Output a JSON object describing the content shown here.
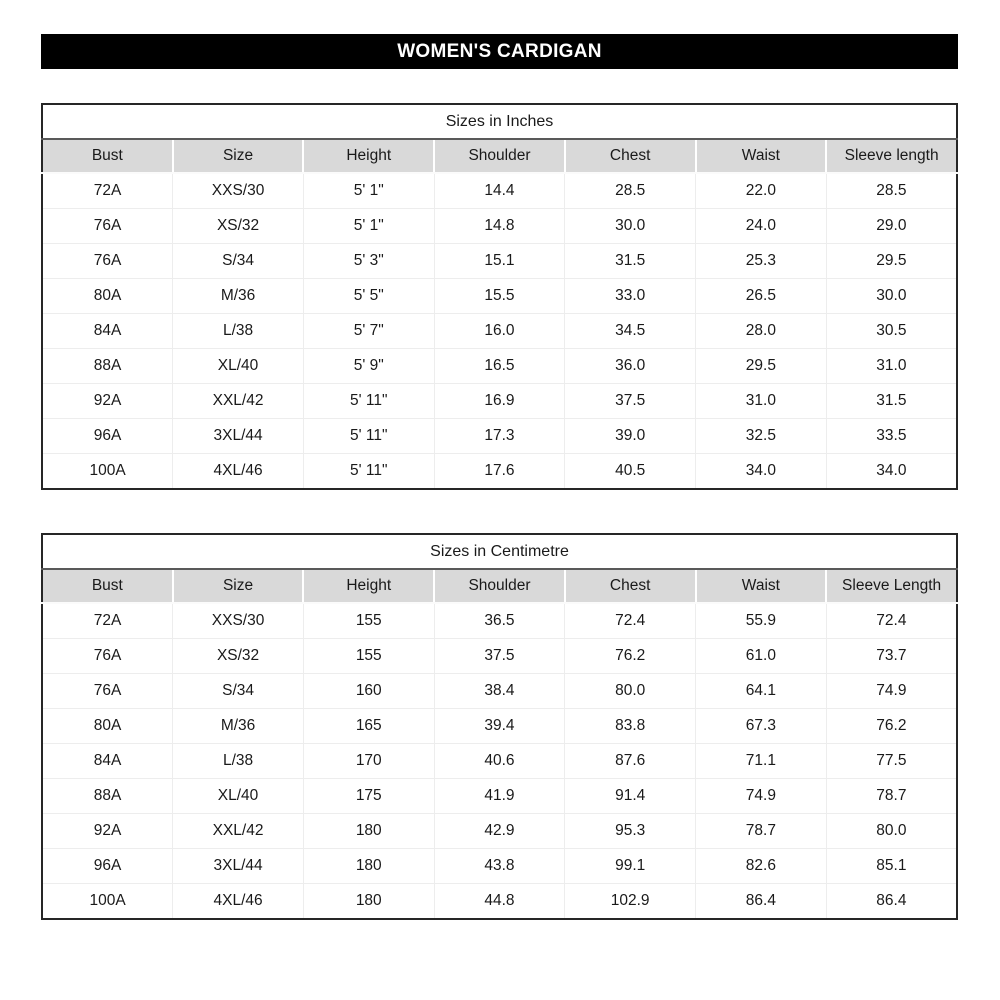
{
  "banner": {
    "title": "WOMEN'S CARDIGAN",
    "background_color": "#000000",
    "text_color": "#ffffff"
  },
  "colors": {
    "header_row_bg": "#d9d9d9",
    "outer_border": "#262626",
    "title_rule": "#595959",
    "grid_line": "#ededed"
  },
  "tables": [
    {
      "title": "Sizes in Inches",
      "headers": [
        "Bust",
        "Size",
        "Height",
        "Shoulder",
        "Chest",
        "Waist",
        "Sleeve length"
      ],
      "rows": [
        [
          "72A",
          "XXS/30",
          "5' 1\"",
          "14.4",
          "28.5",
          "22.0",
          "28.5"
        ],
        [
          "76A",
          "XS/32",
          "5' 1\"",
          "14.8",
          "30.0",
          "24.0",
          "29.0"
        ],
        [
          "76A",
          "S/34",
          "5' 3\"",
          "15.1",
          "31.5",
          "25.3",
          "29.5"
        ],
        [
          "80A",
          "M/36",
          "5' 5\"",
          "15.5",
          "33.0",
          "26.5",
          "30.0"
        ],
        [
          "84A",
          "L/38",
          "5' 7\"",
          "16.0",
          "34.5",
          "28.0",
          "30.5"
        ],
        [
          "88A",
          "XL/40",
          "5' 9\"",
          "16.5",
          "36.0",
          "29.5",
          "31.0"
        ],
        [
          "92A",
          "XXL/42",
          "5' 11\"",
          "16.9",
          "37.5",
          "31.0",
          "31.5"
        ],
        [
          "96A",
          "3XL/44",
          "5' 11\"",
          "17.3",
          "39.0",
          "32.5",
          "33.5"
        ],
        [
          "100A",
          "4XL/46",
          "5' 11\"",
          "17.6",
          "40.5",
          "34.0",
          "34.0"
        ]
      ]
    },
    {
      "title": "Sizes in Centimetre",
      "headers": [
        "Bust",
        "Size",
        "Height",
        "Shoulder",
        "Chest",
        "Waist",
        "Sleeve Length"
      ],
      "rows": [
        [
          "72A",
          "XXS/30",
          "155",
          "36.5",
          "72.4",
          "55.9",
          "72.4"
        ],
        [
          "76A",
          "XS/32",
          "155",
          "37.5",
          "76.2",
          "61.0",
          "73.7"
        ],
        [
          "76A",
          "S/34",
          "160",
          "38.4",
          "80.0",
          "64.1",
          "74.9"
        ],
        [
          "80A",
          "M/36",
          "165",
          "39.4",
          "83.8",
          "67.3",
          "76.2"
        ],
        [
          "84A",
          "L/38",
          "170",
          "40.6",
          "87.6",
          "71.1",
          "77.5"
        ],
        [
          "88A",
          "XL/40",
          "175",
          "41.9",
          "91.4",
          "74.9",
          "78.7"
        ],
        [
          "92A",
          "XXL/42",
          "180",
          "42.9",
          "95.3",
          "78.7",
          "80.0"
        ],
        [
          "96A",
          "3XL/44",
          "180",
          "43.8",
          "99.1",
          "82.6",
          "85.1"
        ],
        [
          "100A",
          "4XL/46",
          "180",
          "44.8",
          "102.9",
          "86.4",
          "86.4"
        ]
      ]
    }
  ]
}
